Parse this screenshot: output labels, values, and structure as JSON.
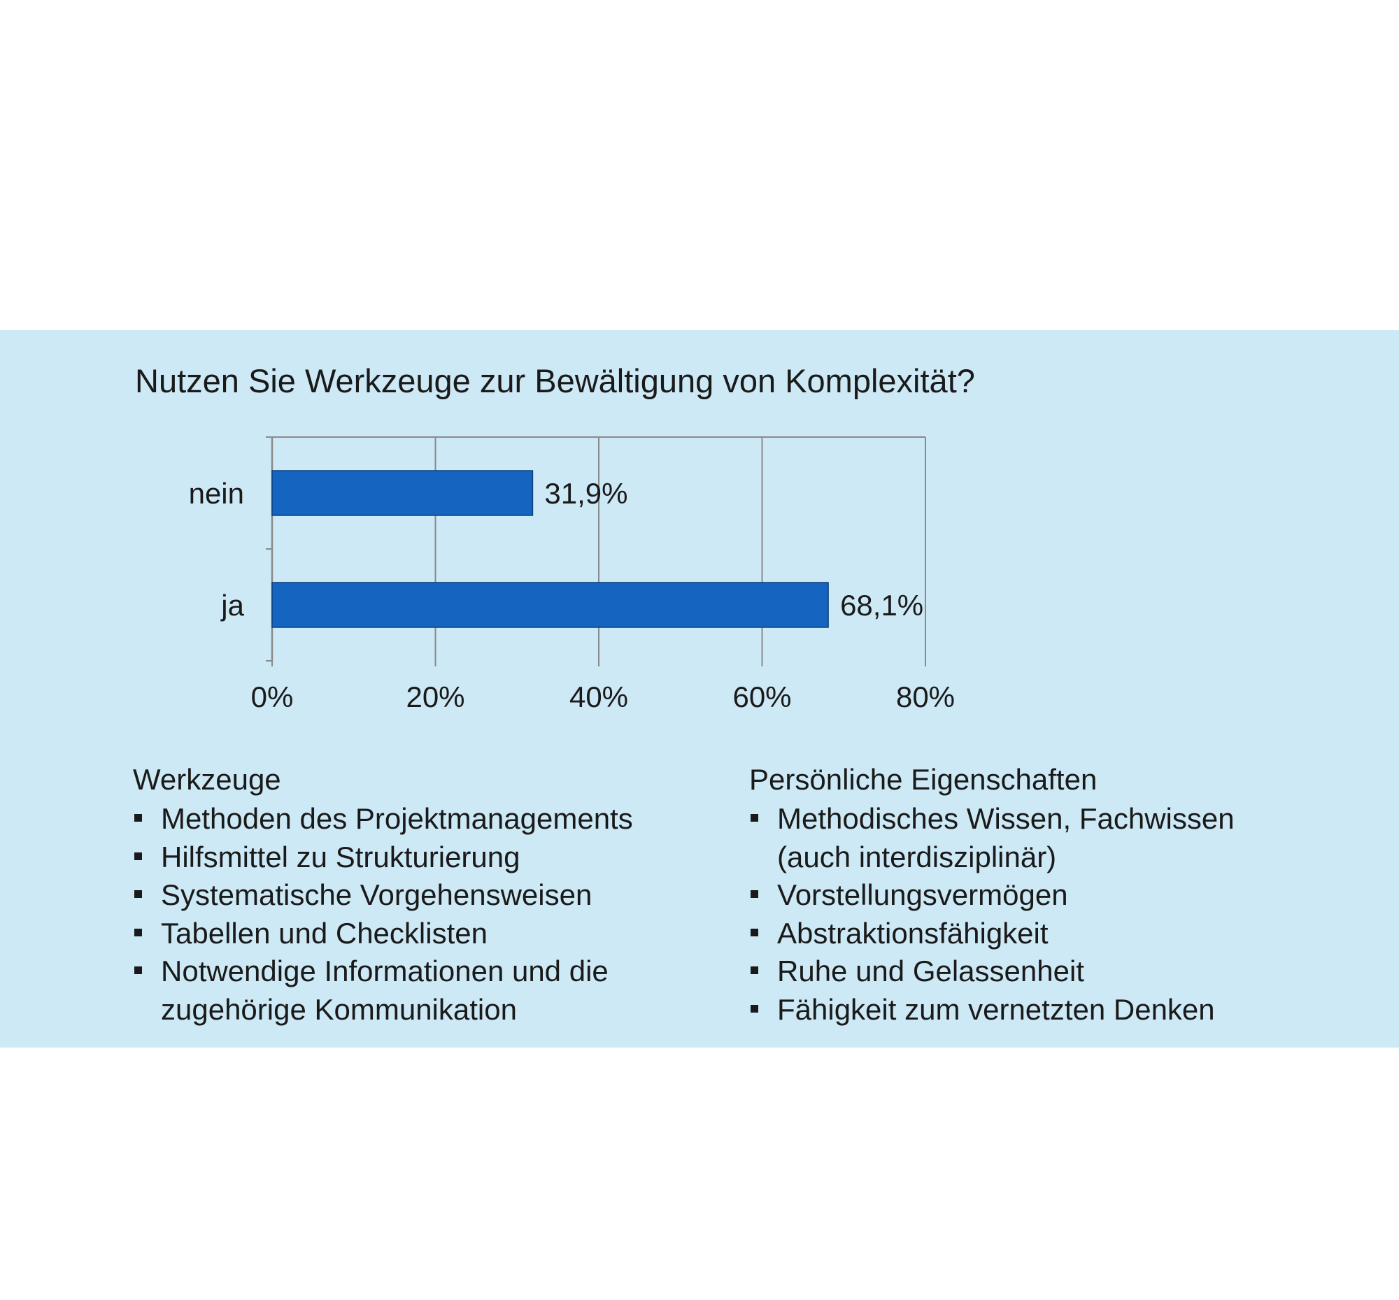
{
  "chart_data": {
    "type": "bar",
    "orientation": "horizontal",
    "title": "Nutzen Sie Werkzeuge zur Bewältigung von Komplexität?",
    "categories": [
      "nein",
      "ja"
    ],
    "values": [
      31.9,
      68.1
    ],
    "value_labels": [
      "31,9%",
      "68,1%"
    ],
    "xlim": [
      0,
      80
    ],
    "x_ticks": [
      0,
      20,
      40,
      60,
      80
    ],
    "x_tick_labels": [
      "0%",
      "20%",
      "40%",
      "60%",
      "80%"
    ],
    "xlabel": "",
    "ylabel": "",
    "grid": "vertical",
    "legend": "none",
    "colors": {
      "bar": "#1565c0",
      "bar_border": "#0d3f7a",
      "grid": "#8a8a8a",
      "panel": "#cde9f6"
    }
  },
  "sections": {
    "tools": {
      "title": "Werkzeuge",
      "items": [
        "Methoden des Projektmanagements",
        "Hilfsmittel zu Strukturierung",
        "Systematische Vorgehensweisen",
        "Tabellen und Checklisten",
        "Notwendige Informationen und die zugehörige Kommunikation"
      ]
    },
    "traits": {
      "title": "Persönliche Eigenschaften",
      "items": [
        "Methodisches Wissen, Fachwissen (auch interdisziplinär)",
        "Vorstellungsvermögen",
        "Abstraktionsfähigkeit",
        "Ruhe und Gelassenheit",
        "Fähigkeit zum vernetzten Denken"
      ]
    }
  }
}
